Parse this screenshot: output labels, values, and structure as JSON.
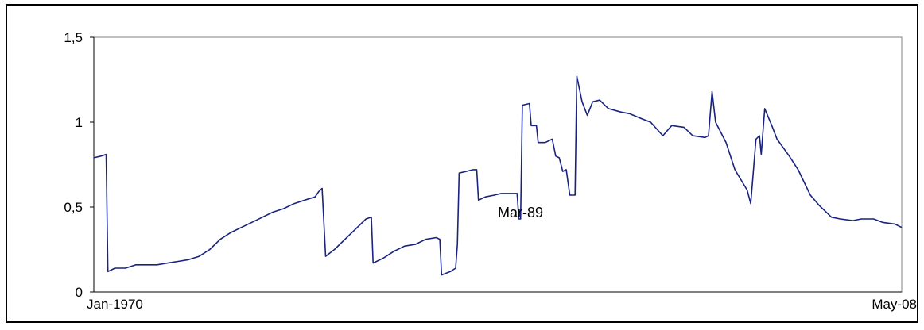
{
  "chart_data": {
    "type": "line",
    "title": "",
    "xlabel": "",
    "ylabel": "",
    "x_range": [
      "1970-01",
      "2008-05"
    ],
    "ylim": [
      0,
      1.5
    ],
    "y_ticks": [
      {
        "value": 0,
        "label": "0"
      },
      {
        "value": 0.5,
        "label": "0,5"
      },
      {
        "value": 1,
        "label": "1"
      },
      {
        "value": 1.5,
        "label": "1,5"
      }
    ],
    "x_tick_labels": [
      {
        "x": "1970-01",
        "label": "Jan-1970"
      },
      {
        "x": "2008-05",
        "label": "May-08"
      }
    ],
    "annotation": {
      "x": "1989-03",
      "y": 0.43,
      "label": "Mar-89"
    },
    "grid": false,
    "legend": "none",
    "series": [
      {
        "color": "#1a237e",
        "points": [
          [
            "1970-01",
            0.79
          ],
          [
            "1970-05",
            0.8
          ],
          [
            "1970-08",
            0.81
          ],
          [
            "1970-09",
            0.12
          ],
          [
            "1971-01",
            0.14
          ],
          [
            "1971-07",
            0.14
          ],
          [
            "1972-01",
            0.16
          ],
          [
            "1972-07",
            0.16
          ],
          [
            "1973-01",
            0.16
          ],
          [
            "1973-07",
            0.17
          ],
          [
            "1974-01",
            0.18
          ],
          [
            "1974-07",
            0.19
          ],
          [
            "1975-01",
            0.21
          ],
          [
            "1975-07",
            0.25
          ],
          [
            "1976-01",
            0.31
          ],
          [
            "1976-07",
            0.35
          ],
          [
            "1977-01",
            0.38
          ],
          [
            "1977-07",
            0.41
          ],
          [
            "1978-01",
            0.44
          ],
          [
            "1978-07",
            0.47
          ],
          [
            "1979-01",
            0.49
          ],
          [
            "1979-07",
            0.52
          ],
          [
            "1980-01",
            0.54
          ],
          [
            "1980-07",
            0.56
          ],
          [
            "1980-09",
            0.59
          ],
          [
            "1980-11",
            0.61
          ],
          [
            "1981-01",
            0.21
          ],
          [
            "1981-06",
            0.25
          ],
          [
            "1981-12",
            0.31
          ],
          [
            "1982-06",
            0.37
          ],
          [
            "1982-12",
            0.43
          ],
          [
            "1983-03",
            0.44
          ],
          [
            "1983-04",
            0.17
          ],
          [
            "1983-10",
            0.2
          ],
          [
            "1984-04",
            0.24
          ],
          [
            "1984-10",
            0.27
          ],
          [
            "1985-04",
            0.28
          ],
          [
            "1985-10",
            0.31
          ],
          [
            "1986-04",
            0.32
          ],
          [
            "1986-06",
            0.31
          ],
          [
            "1986-07",
            0.1
          ],
          [
            "1986-12",
            0.12
          ],
          [
            "1987-03",
            0.14
          ],
          [
            "1987-04",
            0.28
          ],
          [
            "1987-05",
            0.7
          ],
          [
            "1987-09",
            0.71
          ],
          [
            "1988-01",
            0.72
          ],
          [
            "1988-03",
            0.72
          ],
          [
            "1988-04",
            0.54
          ],
          [
            "1988-08",
            0.56
          ],
          [
            "1989-01",
            0.57
          ],
          [
            "1989-05",
            0.58
          ],
          [
            "1989-08",
            0.58
          ],
          [
            "1989-12",
            0.58
          ],
          [
            "1990-02",
            0.58
          ],
          [
            "1990-03",
            0.43
          ],
          [
            "1990-04",
            0.43
          ],
          [
            "1990-05",
            1.1
          ],
          [
            "1990-09",
            1.11
          ],
          [
            "1990-10",
            0.98
          ],
          [
            "1991-01",
            0.98
          ],
          [
            "1991-02",
            0.88
          ],
          [
            "1991-06",
            0.88
          ],
          [
            "1991-10",
            0.9
          ],
          [
            "1991-12",
            0.8
          ],
          [
            "1992-02",
            0.79
          ],
          [
            "1992-04",
            0.71
          ],
          [
            "1992-06",
            0.72
          ],
          [
            "1992-08",
            0.57
          ],
          [
            "1992-11",
            0.57
          ],
          [
            "1992-12",
            1.27
          ],
          [
            "1993-03",
            1.12
          ],
          [
            "1993-06",
            1.04
          ],
          [
            "1993-09",
            1.12
          ],
          [
            "1994-01",
            1.13
          ],
          [
            "1994-06",
            1.08
          ],
          [
            "1995-01",
            1.06
          ],
          [
            "1995-06",
            1.05
          ],
          [
            "1996-01",
            1.02
          ],
          [
            "1996-06",
            1.0
          ],
          [
            "1997-01",
            0.92
          ],
          [
            "1997-06",
            0.98
          ],
          [
            "1998-01",
            0.97
          ],
          [
            "1998-06",
            0.92
          ],
          [
            "1999-01",
            0.91
          ],
          [
            "1999-03",
            0.92
          ],
          [
            "1999-05",
            1.18
          ],
          [
            "1999-07",
            1.0
          ],
          [
            "2000-01",
            0.88
          ],
          [
            "2000-06",
            0.72
          ],
          [
            "2001-01",
            0.6
          ],
          [
            "2001-03",
            0.52
          ],
          [
            "2001-06",
            0.9
          ],
          [
            "2001-08",
            0.92
          ],
          [
            "2001-09",
            0.81
          ],
          [
            "2001-11",
            1.08
          ],
          [
            "2002-03",
            0.98
          ],
          [
            "2002-06",
            0.9
          ],
          [
            "2003-01",
            0.8
          ],
          [
            "2003-06",
            0.72
          ],
          [
            "2004-01",
            0.57
          ],
          [
            "2004-06",
            0.51
          ],
          [
            "2005-01",
            0.44
          ],
          [
            "2005-06",
            0.43
          ],
          [
            "2006-01",
            0.42
          ],
          [
            "2006-06",
            0.43
          ],
          [
            "2007-01",
            0.43
          ],
          [
            "2007-06",
            0.41
          ],
          [
            "2008-01",
            0.4
          ],
          [
            "2008-05",
            0.38
          ]
        ]
      }
    ]
  }
}
